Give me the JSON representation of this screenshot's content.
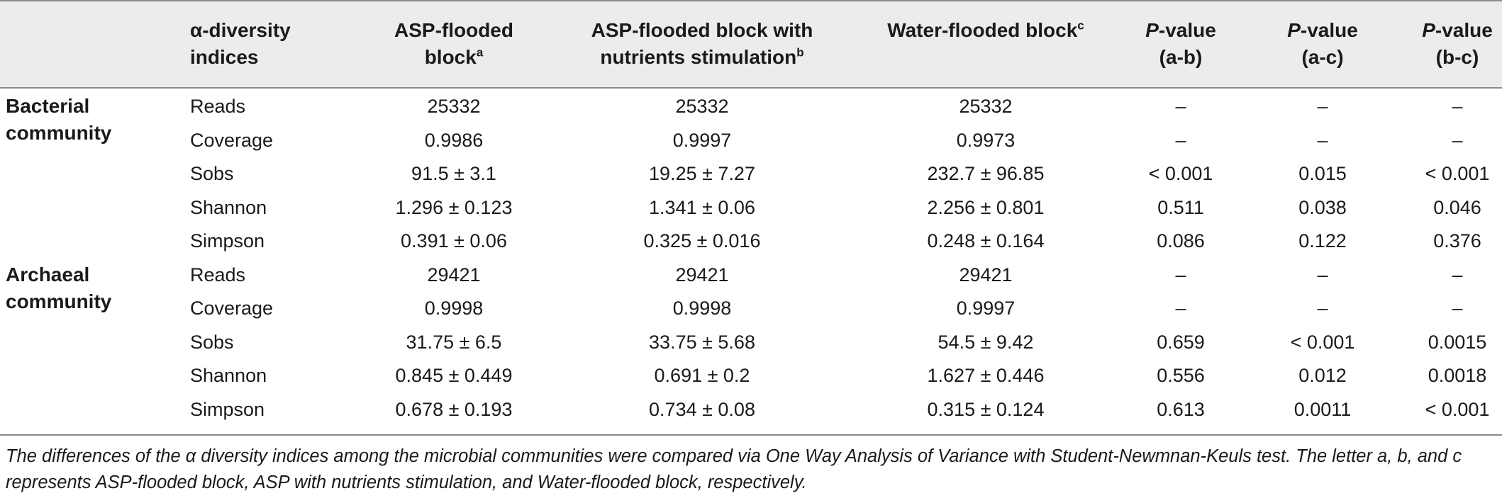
{
  "header": {
    "col_indices": [
      "α-diversity",
      "indices"
    ],
    "col_a": [
      "ASP-flooded",
      "block"
    ],
    "col_a_sup": "a",
    "col_b": [
      "ASP-flooded block with",
      "nutrients stimulation"
    ],
    "col_b_sup": "b",
    "col_c": "Water-flooded block",
    "col_c_sup": "c",
    "p_label": "P",
    "p_suffix": "-value",
    "p_ab": "(a-b)",
    "p_ac": "(a-c)",
    "p_bc": "(b-c)"
  },
  "groups": [
    {
      "name": [
        "Bacterial",
        "community"
      ],
      "rows": [
        {
          "index": "Reads",
          "a": "25332",
          "b": "25332",
          "c": "25332",
          "pab": "–",
          "pac": "–",
          "pbc": "–"
        },
        {
          "index": "Coverage",
          "a": "0.9986",
          "b": "0.9997",
          "c": "0.9973",
          "pab": "–",
          "pac": "–",
          "pbc": "–"
        },
        {
          "index": "Sobs",
          "a": "91.5 ± 3.1",
          "b": "19.25 ± 7.27",
          "c": "232.7 ± 96.85",
          "pab": "< 0.001",
          "pac": "0.015",
          "pbc": "< 0.001"
        },
        {
          "index": "Shannon",
          "a": "1.296 ± 0.123",
          "b": "1.341 ± 0.06",
          "c": "2.256 ± 0.801",
          "pab": "0.511",
          "pac": "0.038",
          "pbc": "0.046"
        },
        {
          "index": "Simpson",
          "a": "0.391 ± 0.06",
          "b": "0.325 ± 0.016",
          "c": "0.248 ± 0.164",
          "pab": "0.086",
          "pac": "0.122",
          "pbc": "0.376"
        }
      ]
    },
    {
      "name": [
        "Archaeal",
        "community"
      ],
      "rows": [
        {
          "index": "Reads",
          "a": "29421",
          "b": "29421",
          "c": "29421",
          "pab": "–",
          "pac": "–",
          "pbc": "–"
        },
        {
          "index": "Coverage",
          "a": "0.9998",
          "b": "0.9998",
          "c": "0.9997",
          "pab": "–",
          "pac": "–",
          "pbc": "–"
        },
        {
          "index": "Sobs",
          "a": "31.75 ± 6.5",
          "b": "33.75 ± 5.68",
          "c": "54.5 ± 9.42",
          "pab": "0.659",
          "pac": "< 0.001",
          "pbc": "0.0015"
        },
        {
          "index": "Shannon",
          "a": "0.845 ± 0.449",
          "b": "0.691 ± 0.2",
          "c": "1.627 ± 0.446",
          "pab": "0.556",
          "pac": "0.012",
          "pbc": "0.0018"
        },
        {
          "index": "Simpson",
          "a": "0.678 ± 0.193",
          "b": "0.734 ± 0.08",
          "c": "0.315 ± 0.124",
          "pab": "0.613",
          "pac": "0.0011",
          "pbc": "< 0.001"
        }
      ]
    }
  ],
  "footnote": "The differences of the α diversity indices among the microbial communities were compared via One Way Analysis of Variance with Student-Newmnan-Keuls test. The letter a, b, and c represents ASP-flooded block, ASP with nutrients stimulation, and Water-flooded block, respectively."
}
